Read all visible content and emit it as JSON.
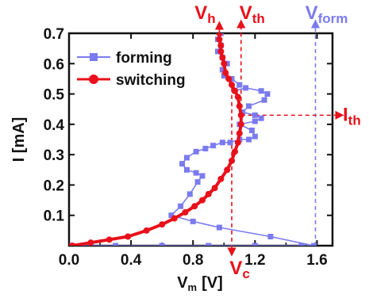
{
  "chart_data": {
    "type": "line",
    "xlabel": "V",
    "xlabel_sub": "m",
    "xlabel_unit": "[V]",
    "ylabel": "I [mA]",
    "xlim": [
      0.0,
      1.7
    ],
    "ylim": [
      0.0,
      0.7
    ],
    "x_ticks": [
      0.0,
      0.4,
      0.8,
      1.2,
      1.6
    ],
    "x_tick_labels": [
      "0.0",
      "0.4",
      "0.8",
      "1.2",
      "1.6"
    ],
    "y_ticks": [
      0.1,
      0.2,
      0.3,
      0.4,
      0.5,
      0.6,
      0.7
    ],
    "y_tick_labels": [
      "0.1",
      "0.2",
      "0.3",
      "0.4",
      "0.5",
      "0.6",
      "0.7"
    ],
    "legend_position": "top-left",
    "series": [
      {
        "name": "forming",
        "color": "#7b7bef",
        "marker": "square",
        "x": [
          0.02,
          0.3,
          0.6,
          0.9,
          1.2,
          1.5,
          1.58,
          1.3,
          0.97,
          0.8,
          0.66,
          0.72,
          0.78,
          0.83,
          0.86,
          0.82,
          0.76,
          0.73,
          0.76,
          0.82,
          0.88,
          0.93,
          0.99,
          1.04,
          1.1,
          1.16,
          1.2,
          1.18,
          1.1,
          1.2,
          1.24,
          1.2,
          1.12,
          1.16,
          1.26,
          1.28,
          1.24,
          1.14,
          1.07,
          1.1,
          1.05,
          1.0,
          0.99,
          1.02,
          0.99,
          0.96,
          0.98,
          0.96,
          0.98
        ],
        "y": [
          0.0,
          0.0,
          0.0,
          0.0,
          0.0,
          0.0,
          0.0,
          0.03,
          0.06,
          0.08,
          0.1,
          0.13,
          0.17,
          0.21,
          0.23,
          0.24,
          0.25,
          0.27,
          0.29,
          0.31,
          0.32,
          0.33,
          0.34,
          0.34,
          0.35,
          0.35,
          0.36,
          0.38,
          0.4,
          0.41,
          0.42,
          0.43,
          0.44,
          0.46,
          0.48,
          0.5,
          0.51,
          0.52,
          0.51,
          0.53,
          0.55,
          0.56,
          0.58,
          0.6,
          0.62,
          0.64,
          0.66,
          0.68,
          0.7
        ]
      },
      {
        "name": "switching",
        "color": "#e8101a",
        "marker": "circle",
        "x": [
          0.02,
          0.14,
          0.26,
          0.38,
          0.5,
          0.6,
          0.68,
          0.75,
          0.81,
          0.86,
          0.9,
          0.94,
          0.98,
          1.02,
          1.05,
          1.07,
          1.09,
          1.1,
          1.11,
          1.11,
          1.1,
          1.09,
          1.07,
          1.05,
          1.03,
          1.01,
          1.0,
          0.99,
          0.98,
          0.98,
          0.97,
          0.97
        ],
        "y": [
          0.0,
          0.01,
          0.02,
          0.03,
          0.05,
          0.07,
          0.09,
          0.11,
          0.13,
          0.15,
          0.17,
          0.19,
          0.22,
          0.25,
          0.28,
          0.31,
          0.34,
          0.37,
          0.4,
          0.43,
          0.46,
          0.49,
          0.51,
          0.53,
          0.55,
          0.57,
          0.6,
          0.62,
          0.64,
          0.66,
          0.68,
          0.7
        ]
      }
    ],
    "reference_lines": [
      {
        "label": "V",
        "sub": "h",
        "axis": "x",
        "value": 0.97,
        "color": "#e8101a"
      },
      {
        "label": "V",
        "sub": "th",
        "axis": "x",
        "value": 1.11,
        "color": "#e8101a"
      },
      {
        "label": "V",
        "sub": "form",
        "axis": "x",
        "value": 1.59,
        "color": "#7b7bef"
      },
      {
        "label": "V",
        "sub": "c",
        "axis": "x",
        "value": 1.05,
        "color": "#e8101a"
      },
      {
        "label": "I",
        "sub": "th",
        "axis": "y",
        "value": 0.43,
        "color": "#e8101a"
      }
    ]
  }
}
